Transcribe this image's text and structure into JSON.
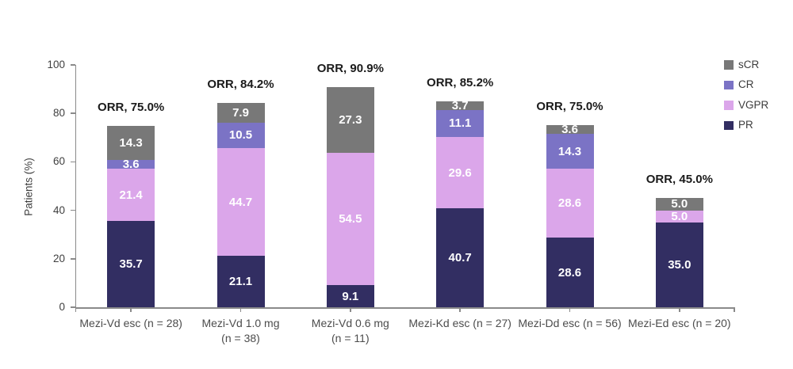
{
  "chart_data": {
    "type": "bar",
    "stacked": true,
    "ylabel": "Patients (%)",
    "ylim": [
      0,
      100
    ],
    "yticks": [
      0,
      20,
      40,
      60,
      80,
      100
    ],
    "grid": false,
    "categories": [
      "Mezi-Vd esc (n = 28)",
      "Mezi-Vd 1.0 mg\n(n = 38)",
      "Mezi-Vd 0.6 mg\n(n = 11)",
      "Mezi-Kd esc (n = 27)",
      "Mezi-Dd esc (n = 56)",
      "Mezi-Ed esc (n = 20)"
    ],
    "series": [
      {
        "name": "PR",
        "color": "#322e62",
        "values": [
          35.7,
          21.1,
          9.1,
          40.7,
          28.6,
          35.0
        ]
      },
      {
        "name": "VGPR",
        "color": "#dba6ea",
        "values": [
          21.4,
          44.7,
          54.5,
          29.6,
          28.6,
          5.0
        ]
      },
      {
        "name": "CR",
        "color": "#7b73c5",
        "values": [
          3.6,
          10.5,
          0,
          11.1,
          14.3,
          0
        ]
      },
      {
        "name": "sCR",
        "color": "#787878",
        "values": [
          14.3,
          7.9,
          27.3,
          3.7,
          3.6,
          5.0
        ]
      }
    ],
    "annotations": [
      "ORR, 75.0%",
      "ORR, 84.2%",
      "ORR, 90.9%",
      "ORR, 85.2%",
      "ORR, 75.0%",
      "ORR, 45.0%"
    ],
    "legend": {
      "position": "top-right",
      "entries": [
        "sCR",
        "CR",
        "VGPR",
        "PR"
      ]
    },
    "colors": {
      "axis": "#8a8a8a",
      "segment_value_text": "#ffffff",
      "annotation_text": "#1b1b1b"
    }
  }
}
